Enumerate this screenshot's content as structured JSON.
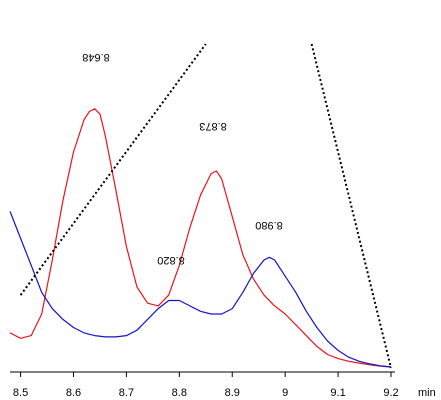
{
  "chart_data": {
    "type": "line",
    "title": "",
    "xlabel": "min",
    "ylabel": "",
    "xlim": [
      8.48,
      9.23
    ],
    "ylim": [
      0,
      1
    ],
    "x_ticks": [
      "8.5",
      "8.6",
      "8.7",
      "8.8",
      "8.9",
      "9",
      "9.1",
      "9.2"
    ],
    "x_tick_values": [
      8.5,
      8.6,
      8.7,
      8.8,
      8.9,
      9.0,
      9.1,
      9.2
    ],
    "grid": false,
    "series": [
      {
        "color": "#e8151b",
        "x": [
          8.48,
          8.5,
          8.52,
          8.54,
          8.56,
          8.58,
          8.6,
          8.62,
          8.63,
          8.64,
          8.65,
          8.66,
          8.68,
          8.7,
          8.72,
          8.74,
          8.76,
          8.78,
          8.8,
          8.82,
          8.84,
          8.86,
          8.87,
          8.88,
          8.9,
          8.92,
          8.94,
          8.96,
          8.98,
          9.0,
          9.02,
          9.04,
          9.06,
          9.08,
          9.1,
          9.12,
          9.14,
          9.16,
          9.18,
          9.2
        ],
        "y": [
          0.13,
          0.11,
          0.12,
          0.2,
          0.4,
          0.62,
          0.8,
          0.92,
          0.95,
          0.96,
          0.94,
          0.86,
          0.66,
          0.45,
          0.3,
          0.24,
          0.23,
          0.27,
          0.38,
          0.52,
          0.64,
          0.72,
          0.73,
          0.7,
          0.56,
          0.42,
          0.33,
          0.27,
          0.23,
          0.2,
          0.16,
          0.12,
          0.08,
          0.05,
          0.035,
          0.025,
          0.018,
          0.012,
          0.007,
          0.003
        ]
      },
      {
        "color": "#1414c8",
        "x": [
          8.48,
          8.5,
          8.52,
          8.54,
          8.56,
          8.58,
          8.6,
          8.62,
          8.64,
          8.66,
          8.68,
          8.7,
          8.72,
          8.74,
          8.76,
          8.78,
          8.8,
          8.82,
          8.84,
          8.86,
          8.88,
          8.9,
          8.92,
          8.94,
          8.96,
          8.97,
          8.98,
          9.0,
          9.02,
          9.04,
          9.06,
          9.08,
          9.1,
          9.12,
          9.14,
          9.16,
          9.18,
          9.2
        ],
        "y": [
          0.58,
          0.48,
          0.38,
          0.28,
          0.22,
          0.18,
          0.15,
          0.13,
          0.12,
          0.115,
          0.115,
          0.12,
          0.14,
          0.18,
          0.22,
          0.25,
          0.25,
          0.23,
          0.21,
          0.2,
          0.2,
          0.22,
          0.28,
          0.35,
          0.4,
          0.41,
          0.4,
          0.34,
          0.28,
          0.21,
          0.15,
          0.1,
          0.065,
          0.04,
          0.025,
          0.015,
          0.008,
          0.004
        ]
      },
      {
        "color": "#000000",
        "dashed": true,
        "x": [
          8.5,
          8.85
        ],
        "y": [
          0.27,
          1.2
        ]
      },
      {
        "color": "#000000",
        "dashed": true,
        "x": [
          9.05,
          9.2
        ],
        "y": [
          1.2,
          0.0
        ]
      }
    ],
    "annotations": [
      {
        "text": "8.648",
        "x": 8.648,
        "y": 1.0,
        "rotated": true
      },
      {
        "text": "8.873",
        "x": 8.873,
        "y": 0.78,
        "rotated": true
      },
      {
        "text": "8.820",
        "x": 8.777,
        "y": 0.35,
        "rotated": true
      },
      {
        "text": "8.980",
        "x": 8.98,
        "y": 0.45,
        "rotated": true
      }
    ]
  }
}
